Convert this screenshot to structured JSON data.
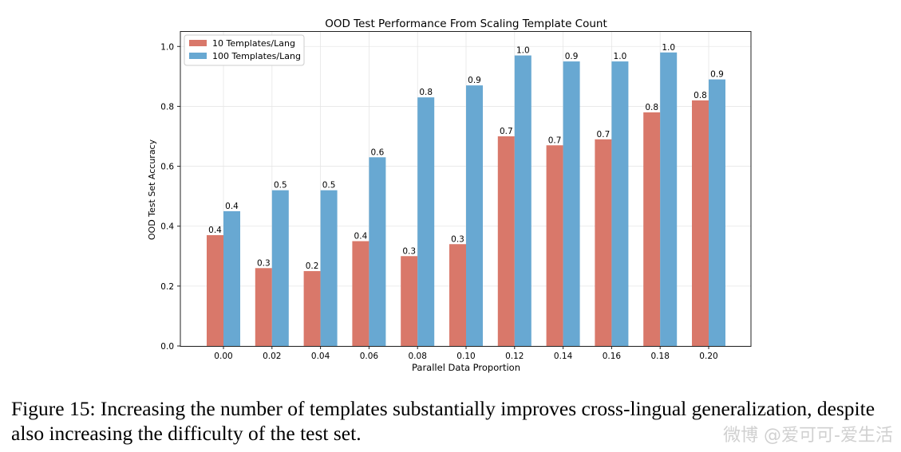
{
  "chart_data": {
    "type": "bar",
    "title": "OOD Test Performance From Scaling Template Count",
    "xlabel": "Parallel Data Proportion",
    "ylabel": "OOD Test Set Accuracy",
    "categories": [
      "0.00",
      "0.02",
      "0.04",
      "0.06",
      "0.08",
      "0.10",
      "0.12",
      "0.14",
      "0.16",
      "0.18",
      "0.20"
    ],
    "series": [
      {
        "name": "10 Templates/Lang",
        "color": "#d9786a",
        "values": [
          0.37,
          0.26,
          0.25,
          0.35,
          0.3,
          0.34,
          0.7,
          0.67,
          0.69,
          0.78,
          0.82
        ],
        "labels": [
          "0.4",
          "0.3",
          "0.2",
          "0.4",
          "0.3",
          "0.3",
          "0.7",
          "0.7",
          "0.7",
          "0.8",
          "0.8"
        ]
      },
      {
        "name": "100 Templates/Lang",
        "color": "#68a8d2",
        "values": [
          0.45,
          0.52,
          0.52,
          0.63,
          0.83,
          0.87,
          0.97,
          0.95,
          0.95,
          0.98,
          0.89
        ],
        "labels": [
          "0.4",
          "0.5",
          "0.5",
          "0.6",
          "0.8",
          "0.9",
          "1.0",
          "0.9",
          "1.0",
          "1.0",
          "0.9"
        ]
      }
    ],
    "ylim": [
      0,
      1.0
    ],
    "yticks": [
      "0.0",
      "0.2",
      "0.4",
      "0.6",
      "0.8",
      "1.0"
    ],
    "grid": true,
    "legend_position": "top-left"
  },
  "caption": "Figure 15: Increasing the number of templates substantially improves cross-lingual generalization, despite also increasing the difficulty of the test set.",
  "watermark": "微博 @爱可可-爱生活"
}
